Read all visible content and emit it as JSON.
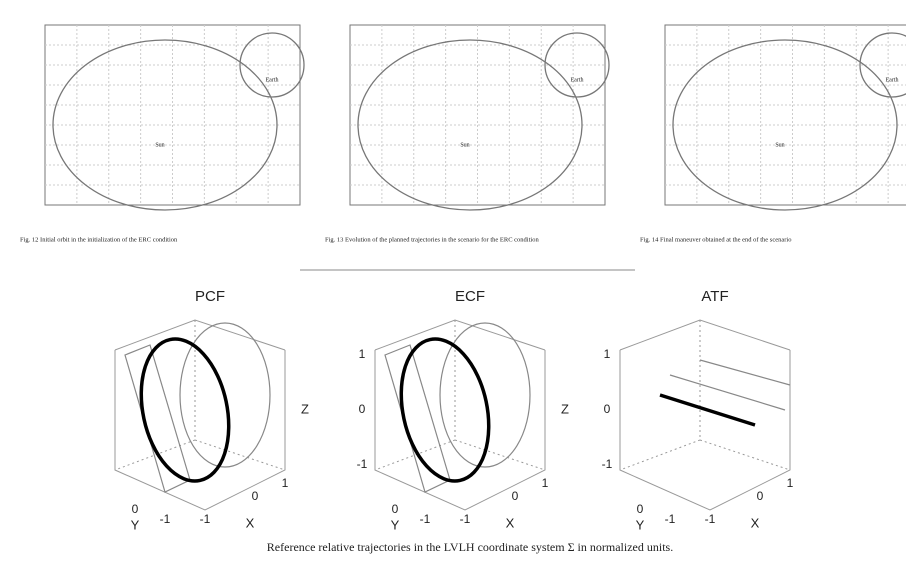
{
  "figures_top": [
    {
      "caption": "Fig. 12  Initial orbit in the initialization of the ERC condition",
      "labels": [
        "Sun",
        "Earth"
      ]
    },
    {
      "caption": "Fig. 13  Evolution of the planned trajectories in the scenario for the ERC condition",
      "labels": [
        "Sun",
        "Earth"
      ]
    },
    {
      "caption": "Fig. 14  Final maneuver obtained at the end of the scenario",
      "labels": [
        "Sun",
        "Earth"
      ]
    }
  ],
  "figures_bottom": {
    "panels": [
      {
        "title": "PCF",
        "z_label": "Z",
        "bottom_ticks": [
          "0",
          "-1",
          "-1",
          "0",
          "1"
        ],
        "y_label": "Y",
        "x_label": "X"
      },
      {
        "title": "ECF",
        "z_ticks": [
          "1",
          "0",
          "-1"
        ],
        "z_label": "Z",
        "bottom_ticks": [
          "0",
          "-1",
          "-1",
          "0",
          "1"
        ],
        "y_label": "Y",
        "x_label": "X"
      },
      {
        "title": "ATF",
        "z_ticks": [
          "1",
          "0",
          "-1"
        ],
        "bottom_ticks": [
          "0",
          "-1",
          "-1",
          "0",
          "1"
        ],
        "y_label": "Y",
        "x_label": "X"
      }
    ],
    "caption": "Reference relative trajectories in the LVLH coordinate system Σ in normalized units."
  }
}
